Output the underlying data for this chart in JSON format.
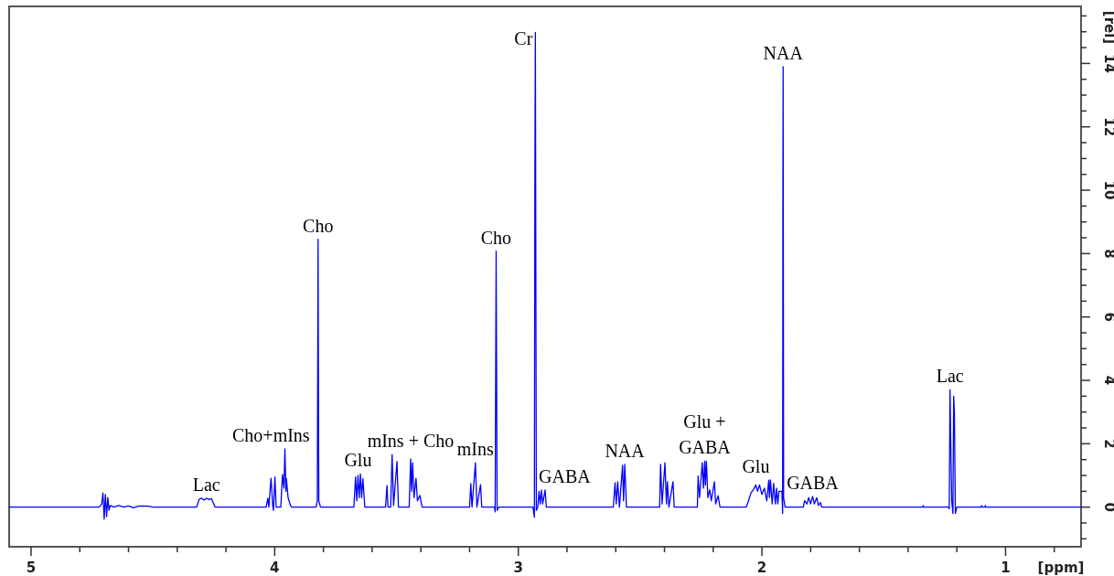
{
  "chart_data": {
    "type": "line",
    "xlabel": "[ppm]",
    "ylabel": "[rel]",
    "xlim": [
      5.09,
      0.69
    ],
    "ylim": [
      -1.25,
      15.8
    ],
    "xticks": [
      5,
      {
        "value": 4.8,
        "label": null
      },
      {
        "value": 4.6,
        "label": null
      },
      {
        "value": 4.4,
        "label": null
      },
      {
        "value": 4.2,
        "label": null
      },
      4,
      {
        "value": 3.8,
        "label": null
      },
      {
        "value": 3.6,
        "label": null
      },
      {
        "value": 3.4,
        "label": null
      },
      {
        "value": 3.2,
        "label": null
      },
      3,
      {
        "value": 2.8,
        "label": null
      },
      {
        "value": 2.6,
        "label": null
      },
      {
        "value": 2.4,
        "label": null
      },
      {
        "value": 2.2,
        "label": null
      },
      2,
      {
        "value": 1.8,
        "label": null
      },
      {
        "value": 1.6,
        "label": null
      },
      {
        "value": 1.4,
        "label": null
      },
      {
        "value": 1.2,
        "label": null
      },
      1,
      {
        "value": 0.8,
        "label": null
      }
    ],
    "yticks": [
      {
        "value": -1,
        "label": null
      },
      {
        "value": -0.5,
        "label": null
      },
      0,
      {
        "value": 0.5,
        "label": null
      },
      {
        "value": 1,
        "label": null
      },
      {
        "value": 1.5,
        "label": null
      },
      2,
      {
        "value": 2.5,
        "label": null
      },
      {
        "value": 3,
        "label": null
      },
      {
        "value": 3.5,
        "label": null
      },
      4,
      {
        "value": 4.5,
        "label": null
      },
      {
        "value": 5,
        "label": null
      },
      {
        "value": 5.5,
        "label": null
      },
      6,
      {
        "value": 6.5,
        "label": null
      },
      {
        "value": 7,
        "label": null
      },
      {
        "value": 7.5,
        "label": null
      },
      8,
      {
        "value": 8.5,
        "label": null
      },
      {
        "value": 9,
        "label": null
      },
      {
        "value": 9.5,
        "label": null
      },
      10,
      {
        "value": 10.5,
        "label": null
      },
      {
        "value": 11,
        "label": null
      },
      {
        "value": 11.5,
        "label": null
      },
      12,
      {
        "value": 12.5,
        "label": null
      },
      {
        "value": 13,
        "label": null
      },
      {
        "value": 13.5,
        "label": null
      },
      14,
      {
        "value": 14.5,
        "label": null
      },
      {
        "value": 15,
        "label": null
      },
      {
        "value": 15.5,
        "label": null
      }
    ],
    "series": [
      {
        "color": "#0000ff",
        "x": [
          5.09,
          4.72,
          4.71,
          4.705,
          4.7,
          4.695,
          4.69,
          4.685,
          4.68,
          4.675,
          4.66,
          4.64,
          4.62,
          4.6,
          4.58,
          4.56,
          4.54,
          4.52,
          4.5,
          4.32,
          4.31,
          4.3,
          4.29,
          4.28,
          4.27,
          4.26,
          4.25,
          4.245,
          4.035,
          4.028,
          4.024,
          4.015,
          4.008,
          4.005,
          3.999,
          3.994,
          3.975,
          3.968,
          3.962,
          3.958,
          3.954,
          3.952,
          3.945,
          3.935,
          3.93,
          3.83,
          3.825,
          3.823,
          3.822,
          3.819,
          3.812,
          3.675,
          3.668,
          3.663,
          3.658,
          3.653,
          3.648,
          3.643,
          3.638,
          3.63,
          3.545,
          3.539,
          3.535,
          3.524,
          3.518,
          3.512,
          3.498,
          3.492,
          3.448,
          3.442,
          3.438,
          3.434,
          3.428,
          3.42,
          3.414,
          3.404,
          3.395,
          3.2,
          3.195,
          3.19,
          3.176,
          3.17,
          3.155,
          3.15,
          3.098,
          3.095,
          3.091,
          3.087,
          3.08,
          2.94,
          2.934,
          2.932,
          2.93,
          2.926,
          2.92,
          2.915,
          2.91,
          2.905,
          2.9,
          2.89,
          2.885,
          2.61,
          2.603,
          2.598,
          2.592,
          2.585,
          2.572,
          2.568,
          2.563,
          2.556,
          2.42,
          2.416,
          2.41,
          2.398,
          2.392,
          2.388,
          2.382,
          2.365,
          2.36,
          2.265,
          2.262,
          2.256,
          2.245,
          2.24,
          2.235,
          2.232,
          2.228,
          2.222,
          2.214,
          2.208,
          2.195,
          2.19,
          2.18,
          2.172,
          2.065,
          2.055,
          2.045,
          2.035,
          2.025,
          2.018,
          2.01,
          2.0,
          1.99,
          1.98,
          1.972,
          1.969,
          1.965,
          1.958,
          1.952,
          1.945,
          1.94,
          1.935,
          1.93,
          1.925,
          1.918,
          1.915,
          1.914,
          1.913,
          1.911,
          1.905,
          1.83,
          1.825,
          1.815,
          1.808,
          1.8,
          1.792,
          1.785,
          1.775,
          1.768,
          1.76,
          1.755,
          1.34,
          1.338,
          1.336,
          1.235,
          1.231,
          1.228,
          1.225,
          1.221,
          1.216,
          1.213,
          1.21,
          1.206,
          1.2,
          1.1,
          1.098,
          1.096,
          1.085,
          1.083,
          1.081,
          0.69
        ],
        "values": [
          0,
          0,
          0.1,
          0.45,
          -0.38,
          0.4,
          -0.3,
          0.3,
          -0.1,
          0.05,
          0,
          0.05,
          0,
          0.04,
          -0.02,
          0.03,
          0.04,
          0.03,
          0,
          0,
          0.25,
          0.28,
          0.22,
          0.28,
          0.24,
          0.27,
          0.1,
          0,
          0,
          0.28,
          0,
          0.91,
          0.05,
          -0.1,
          0.95,
          0,
          0,
          1.03,
          0.6,
          1.84,
          0.5,
          0.9,
          0.3,
          0.05,
          0,
          0,
          0.2,
          5.48,
          8.45,
          0.2,
          0,
          0,
          0.95,
          0.2,
          1.0,
          0.3,
          1.05,
          0.3,
          0.9,
          0,
          0,
          0.68,
          0,
          0,
          1.66,
          0.05,
          1.44,
          0,
          0,
          1.52,
          0.5,
          1.4,
          0.3,
          0.91,
          0.2,
          0.37,
          0,
          0,
          0.74,
          0,
          1.4,
          0,
          0.71,
          0,
          0,
          -0.15,
          8.08,
          -0.1,
          0,
          0,
          -0.32,
          10.42,
          14.98,
          -0.1,
          0,
          0.5,
          0.1,
          0.54,
          0.1,
          0.54,
          0,
          0,
          0.77,
          0.1,
          0.8,
          0,
          1.32,
          0.2,
          1.35,
          0,
          0,
          1.35,
          0.1,
          1.4,
          0.1,
          0.8,
          0,
          0.8,
          0,
          0,
          0.98,
          0.3,
          1.4,
          0.6,
          1.45,
          0.7,
          1.45,
          0.3,
          0.55,
          0.2,
          0.8,
          0.1,
          0.36,
          0,
          0,
          0.2,
          0.45,
          0.55,
          0.7,
          0.5,
          0.7,
          0.4,
          0.6,
          0.2,
          0.85,
          0.3,
          0.86,
          0.1,
          0.75,
          0.1,
          0.6,
          0.1,
          0.5,
          0.5,
          0.5,
          -0.2,
          9.67,
          13.9,
          0.3,
          0,
          0,
          0.2,
          0.1,
          0.3,
          0.1,
          0.34,
          0.1,
          0.3,
          0.05,
          0.15,
          0,
          0,
          0.05,
          0,
          0,
          -0.05,
          3.7,
          2.09,
          0.2,
          -0.2,
          3.5,
          2.96,
          -0.2,
          0,
          0,
          0.05,
          0,
          0,
          0.05,
          0,
          0
        ]
      }
    ],
    "annotations": [
      {
        "text": "Lac",
        "x": 4.28,
        "y": 0.28
      },
      {
        "text": "Cho+mIns",
        "x": 4.015,
        "y": 0.91
      },
      {
        "text": "Cho",
        "x": 3.822,
        "y": 8.45
      },
      {
        "text": "Glu",
        "x": 3.658,
        "y": 1.0
      },
      {
        "text": "mIns + Cho",
        "x": 3.442,
        "y": 1.52
      },
      {
        "text": "mIns",
        "x": 3.176,
        "y": 1.4
      },
      {
        "text": "Cho",
        "x": 3.091,
        "y": 8.08
      },
      {
        "text": "Cr",
        "x": 2.93,
        "y": 14.98
      },
      {
        "text": "GABA",
        "x": 2.905,
        "y": 0.54
      },
      {
        "text": "NAA",
        "x": 2.563,
        "y": 1.35
      },
      {
        "text": "Glu +\nGABA",
        "x": 2.235,
        "y": 1.45
      },
      {
        "text": "Glu",
        "x": 2.025,
        "y": 0.7
      },
      {
        "text": "NAA",
        "x": 1.913,
        "y": 13.9
      },
      {
        "text": "GABA",
        "x": 1.792,
        "y": 0.34
      },
      {
        "text": "Lac",
        "x": 1.228,
        "y": 3.7
      }
    ]
  }
}
